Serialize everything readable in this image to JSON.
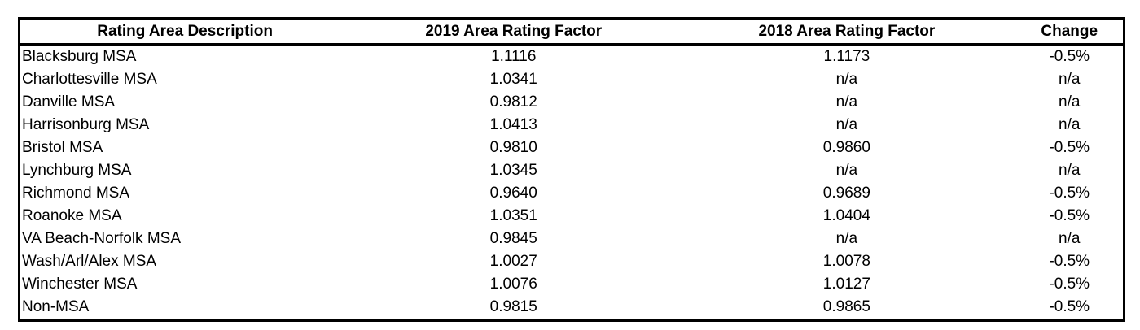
{
  "table": {
    "columns": [
      {
        "label": "Rating Area Description"
      },
      {
        "label": "2019 Area Rating Factor"
      },
      {
        "label": "2018 Area Rating Factor"
      },
      {
        "label": "Change"
      }
    ],
    "rows": [
      [
        "Blacksburg MSA",
        "1.1116",
        "1.1173",
        "-0.5%"
      ],
      [
        "Charlottesville MSA",
        "1.0341",
        "n/a",
        "n/a"
      ],
      [
        "Danville MSA",
        "0.9812",
        "n/a",
        "n/a"
      ],
      [
        "Harrisonburg MSA",
        "1.0413",
        "n/a",
        "n/a"
      ],
      [
        "Bristol MSA",
        "0.9810",
        "0.9860",
        "-0.5%"
      ],
      [
        "Lynchburg MSA",
        "1.0345",
        "n/a",
        "n/a"
      ],
      [
        "Richmond MSA",
        "0.9640",
        "0.9689",
        "-0.5%"
      ],
      [
        "Roanoke MSA",
        "1.0351",
        "1.0404",
        "-0.5%"
      ],
      [
        "VA Beach-Norfolk MSA",
        "0.9845",
        "n/a",
        "n/a"
      ],
      [
        "Wash/Arl/Alex MSA",
        "1.0027",
        "1.0078",
        "-0.5%"
      ],
      [
        "Winchester MSA",
        "1.0076",
        "1.0127",
        "-0.5%"
      ],
      [
        "Non-MSA",
        "0.9815",
        "0.9865",
        "-0.5%"
      ]
    ]
  },
  "colors": {
    "border": "#000000",
    "text": "#000000",
    "background": "#ffffff"
  }
}
